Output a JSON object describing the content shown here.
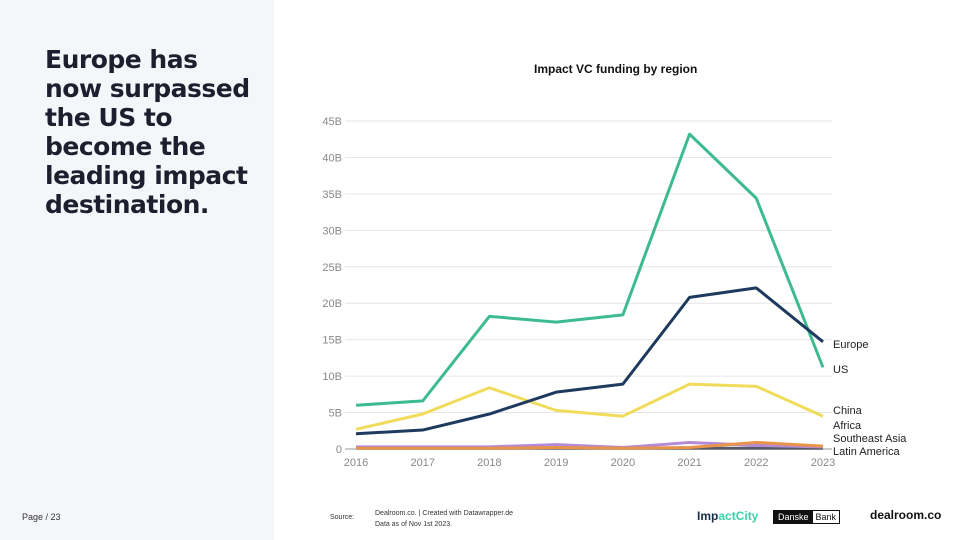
{
  "headline": "Europe has now surpassed the US to become the leading impact destination.",
  "page_label": "Page / 23",
  "footer": {
    "source_label": "Source:",
    "source_line1": "Dealroom.co. | Created with Datawrapper.de",
    "source_line2": "Data as of Nov 1st 2023.",
    "logo_impactcity_a": "Imp",
    "logo_impactcity_b": "actCity",
    "logo_danske_a": "Danske",
    "logo_danske_b": "Bank",
    "logo_dealroom": "dealroom.co"
  },
  "chart_data": {
    "type": "line",
    "title": "Impact VC funding by region",
    "x": [
      2016,
      2017,
      2018,
      2019,
      2020,
      2021,
      2022,
      2023
    ],
    "ylim": [
      0,
      45
    ],
    "yticks": [
      0,
      5,
      10,
      15,
      20,
      25,
      30,
      35,
      40,
      45
    ],
    "ytick_labels": [
      "0",
      "5B",
      "10B",
      "15B",
      "20B",
      "25B",
      "30B",
      "35B",
      "40B",
      "45B"
    ],
    "series": [
      {
        "name": "Europe",
        "color": "#1e3a5f",
        "values": [
          2.1,
          2.6,
          4.8,
          7.8,
          8.9,
          20.8,
          22.1,
          14.7
        ]
      },
      {
        "name": "US",
        "color": "#3dbb8f",
        "values": [
          6.0,
          6.6,
          18.2,
          17.4,
          18.4,
          43.2,
          34.4,
          11.2
        ]
      },
      {
        "name": "China",
        "color": "#f0dc5a",
        "values": [
          2.7,
          4.8,
          8.4,
          5.3,
          4.5,
          8.9,
          8.6,
          4.5
        ]
      },
      {
        "name": "Africa",
        "color": "#e8934a",
        "values": [
          0.1,
          0.1,
          0.1,
          0.2,
          0.1,
          0.2,
          0.9,
          0.4
        ]
      },
      {
        "name": "Southeast Asia",
        "color": "#b58ad6",
        "values": [
          0.3,
          0.3,
          0.3,
          0.6,
          0.2,
          0.9,
          0.5,
          0.3
        ]
      },
      {
        "name": "Latin America",
        "color": "#555a66",
        "values": [
          0.1,
          0.1,
          0.1,
          0.1,
          0.1,
          0.1,
          0.1,
          0.1
        ]
      }
    ],
    "legend_placement": "right (direct labels)"
  }
}
